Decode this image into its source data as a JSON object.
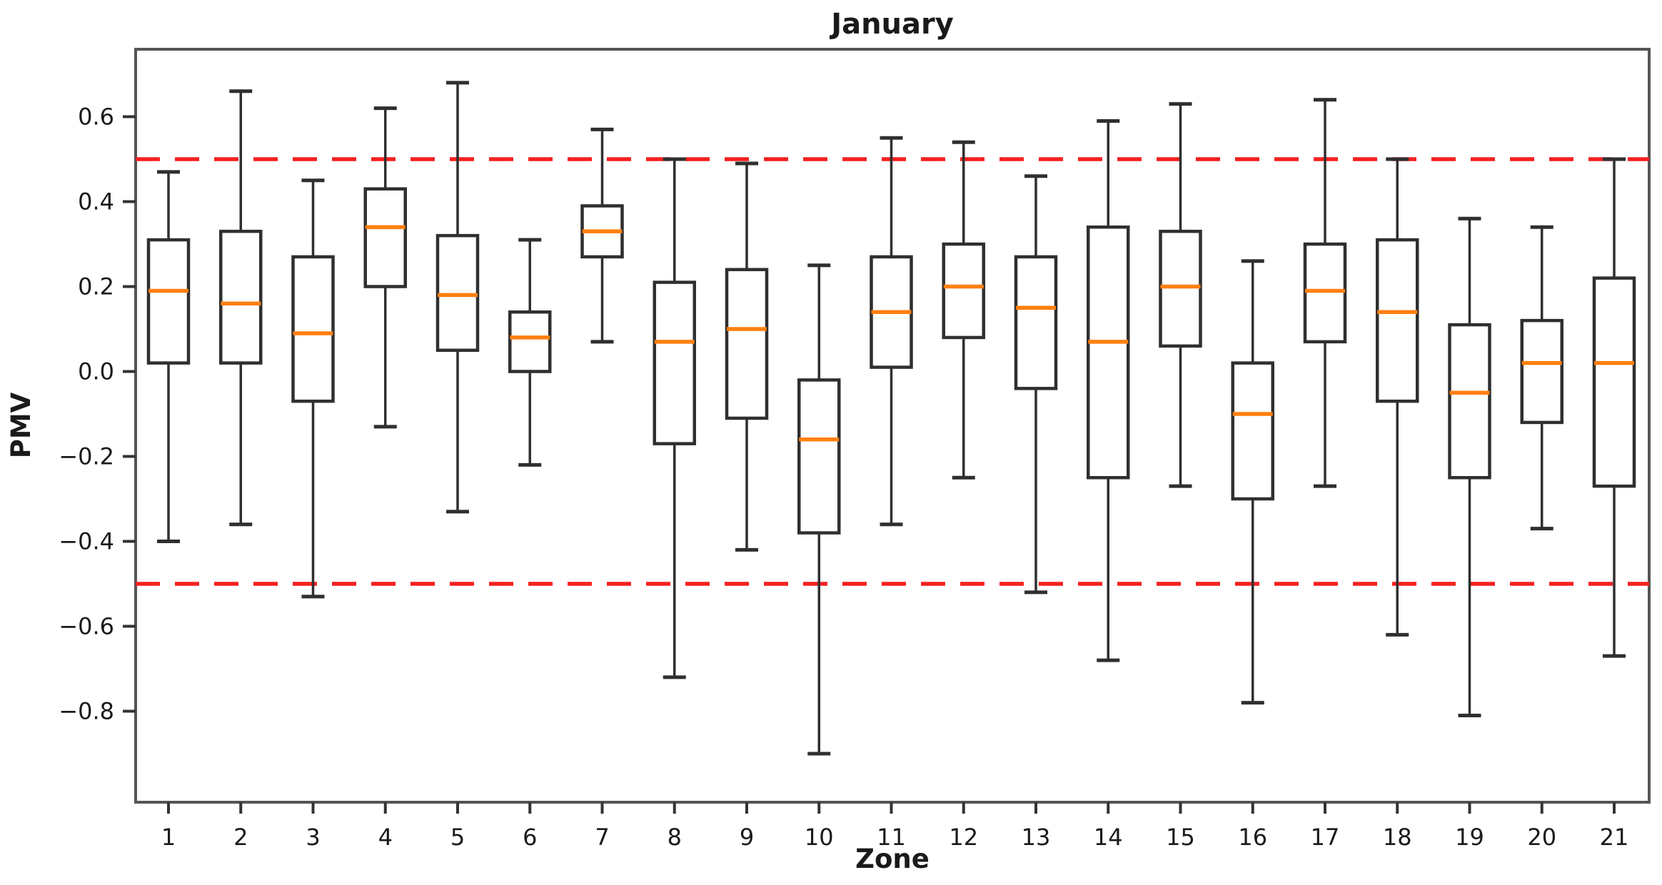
{
  "chart_data": {
    "type": "boxplot",
    "title": "January",
    "xlabel": "Zone",
    "ylabel": "PMV",
    "categories": [
      "1",
      "2",
      "3",
      "4",
      "5",
      "6",
      "7",
      "8",
      "9",
      "10",
      "11",
      "12",
      "13",
      "14",
      "15",
      "16",
      "17",
      "18",
      "19",
      "20",
      "21"
    ],
    "ylim": [
      -1.01,
      0.76
    ],
    "grid": false,
    "legend": "none",
    "yticks": [
      {
        "value": 0.6,
        "label": "0.6"
      },
      {
        "value": 0.4,
        "label": "0.4"
      },
      {
        "value": 0.2,
        "label": "0.2"
      },
      {
        "value": 0.0,
        "label": "0.0"
      },
      {
        "value": -0.2,
        "label": "−0.2"
      },
      {
        "value": -0.4,
        "label": "−0.4"
      },
      {
        "value": -0.6,
        "label": "−0.6"
      },
      {
        "value": -0.8,
        "label": "−0.8"
      }
    ],
    "reference_lines": [
      {
        "name": "upper-comfort-limit",
        "y": 0.5,
        "color": "#f52020",
        "style": "dashed"
      },
      {
        "name": "lower-comfort-limit",
        "y": -0.5,
        "color": "#f52020",
        "style": "dashed"
      }
    ],
    "series": [
      {
        "zone": "1",
        "whisker_low": -0.4,
        "q1": 0.02,
        "median": 0.19,
        "q3": 0.31,
        "whisker_high": 0.47
      },
      {
        "zone": "2",
        "whisker_low": -0.36,
        "q1": 0.02,
        "median": 0.16,
        "q3": 0.33,
        "whisker_high": 0.66
      },
      {
        "zone": "3",
        "whisker_low": -0.53,
        "q1": -0.07,
        "median": 0.09,
        "q3": 0.27,
        "whisker_high": 0.45
      },
      {
        "zone": "4",
        "whisker_low": -0.13,
        "q1": 0.2,
        "median": 0.34,
        "q3": 0.43,
        "whisker_high": 0.62
      },
      {
        "zone": "5",
        "whisker_low": -0.33,
        "q1": 0.05,
        "median": 0.18,
        "q3": 0.32,
        "whisker_high": 0.68
      },
      {
        "zone": "6",
        "whisker_low": -0.22,
        "q1": 0.0,
        "median": 0.08,
        "q3": 0.14,
        "whisker_high": 0.31
      },
      {
        "zone": "7",
        "whisker_low": 0.07,
        "q1": 0.27,
        "median": 0.33,
        "q3": 0.39,
        "whisker_high": 0.57
      },
      {
        "zone": "8",
        "whisker_low": -0.72,
        "q1": -0.17,
        "median": 0.07,
        "q3": 0.21,
        "whisker_high": 0.5
      },
      {
        "zone": "9",
        "whisker_low": -0.42,
        "q1": -0.11,
        "median": 0.1,
        "q3": 0.24,
        "whisker_high": 0.49
      },
      {
        "zone": "10",
        "whisker_low": -0.9,
        "q1": -0.38,
        "median": -0.16,
        "q3": -0.02,
        "whisker_high": 0.25
      },
      {
        "zone": "11",
        "whisker_low": -0.36,
        "q1": 0.01,
        "median": 0.14,
        "q3": 0.27,
        "whisker_high": 0.55
      },
      {
        "zone": "12",
        "whisker_low": -0.25,
        "q1": 0.08,
        "median": 0.2,
        "q3": 0.3,
        "whisker_high": 0.54
      },
      {
        "zone": "13",
        "whisker_low": -0.52,
        "q1": -0.04,
        "median": 0.15,
        "q3": 0.27,
        "whisker_high": 0.46
      },
      {
        "zone": "14",
        "whisker_low": -0.68,
        "q1": -0.25,
        "median": 0.07,
        "q3": 0.34,
        "whisker_high": 0.59
      },
      {
        "zone": "15",
        "whisker_low": -0.27,
        "q1": 0.06,
        "median": 0.2,
        "q3": 0.33,
        "whisker_high": 0.63
      },
      {
        "zone": "16",
        "whisker_low": -0.78,
        "q1": -0.3,
        "median": -0.1,
        "q3": 0.02,
        "whisker_high": 0.26
      },
      {
        "zone": "17",
        "whisker_low": -0.27,
        "q1": 0.07,
        "median": 0.19,
        "q3": 0.3,
        "whisker_high": 0.64
      },
      {
        "zone": "18",
        "whisker_low": -0.62,
        "q1": -0.07,
        "median": 0.14,
        "q3": 0.31,
        "whisker_high": 0.5
      },
      {
        "zone": "19",
        "whisker_low": -0.81,
        "q1": -0.25,
        "median": -0.05,
        "q3": 0.11,
        "whisker_high": 0.36
      },
      {
        "zone": "20",
        "whisker_low": -0.37,
        "q1": -0.12,
        "median": 0.02,
        "q3": 0.12,
        "whisker_high": 0.34
      },
      {
        "zone": "21",
        "whisker_low": -0.67,
        "q1": -0.27,
        "median": 0.02,
        "q3": 0.22,
        "whisker_high": 0.5
      }
    ],
    "colors": {
      "box_edge": "#2f2f2f",
      "whisker": "#2f2f2f",
      "median": "#ff7f0e",
      "reference": "#f52020",
      "axis_frame": "#555555",
      "tick": "#333333",
      "text": "#1a1a1a",
      "background": "#ffffff"
    }
  }
}
